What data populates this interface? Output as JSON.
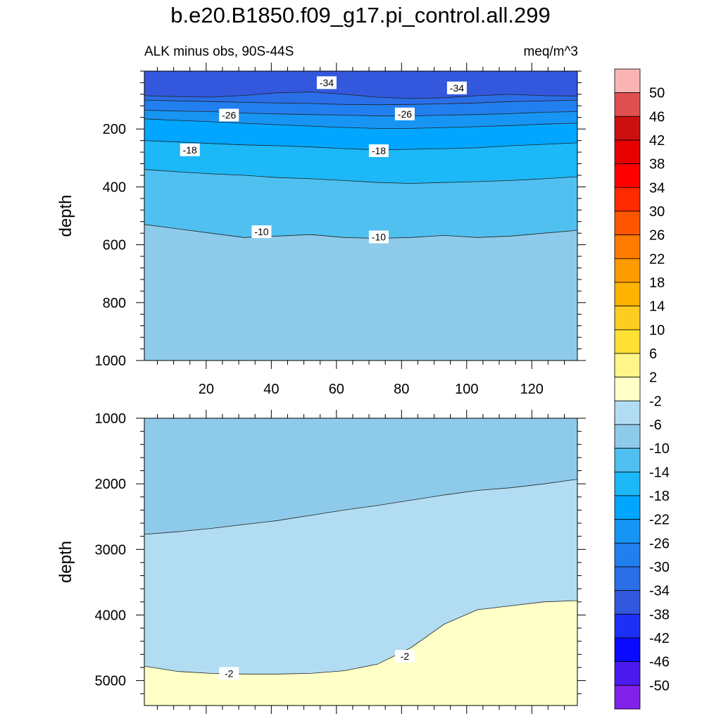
{
  "title": "b.e20.B1850.f09_g17.pi_control.all.299",
  "subtitle_left": "ALK minus obs, 90S-44S",
  "subtitle_right": "meq/m^3",
  "chart_data": [
    {
      "panel": "upper",
      "type": "contour",
      "ylabel": "depth",
      "xlabel": "",
      "xlim": [
        1,
        134
      ],
      "ylim": [
        1000,
        0
      ],
      "y_reversed": true,
      "xticks": [
        20,
        40,
        60,
        80,
        100,
        120
      ],
      "yticks": [
        200,
        400,
        600,
        800,
        1000
      ],
      "level_boundaries": [
        {
          "level": -34,
          "depth": [
            85,
            88,
            90,
            84,
            75,
            72,
            80,
            90,
            95,
            92,
            85,
            80,
            85,
            86
          ]
        },
        {
          "level": -30,
          "depth": [
            100,
            103,
            105,
            108,
            110,
            112,
            115,
            116,
            115,
            113,
            110,
            105,
            103,
            100
          ]
        },
        {
          "level": -26,
          "depth": [
            135,
            138,
            140,
            145,
            148,
            150,
            152,
            155,
            155,
            152,
            150,
            147,
            142,
            140
          ]
        },
        {
          "level": -22,
          "depth": [
            165,
            170,
            175,
            180,
            185,
            190,
            195,
            198,
            198,
            195,
            192,
            188,
            183,
            180
          ]
        },
        {
          "level": -18,
          "depth": [
            240,
            245,
            250,
            255,
            258,
            262,
            268,
            272,
            270,
            268,
            265,
            258,
            253,
            248
          ]
        },
        {
          "level": -14,
          "depth": [
            340,
            348,
            355,
            360,
            368,
            372,
            378,
            385,
            388,
            385,
            382,
            378,
            372,
            365
          ]
        },
        {
          "level": -10,
          "depth": [
            530,
            545,
            560,
            575,
            570,
            565,
            575,
            578,
            575,
            568,
            575,
            570,
            560,
            550
          ]
        }
      ],
      "contour_labels": [
        {
          "text": "-34",
          "x": 57,
          "y": 40
        },
        {
          "text": "-34",
          "x": 97,
          "y": 58
        },
        {
          "text": "-26",
          "x": 27,
          "y": 152
        },
        {
          "text": "-26",
          "x": 81,
          "y": 148
        },
        {
          "text": "-18",
          "x": 15,
          "y": 272
        },
        {
          "text": "-18",
          "x": 73,
          "y": 275
        },
        {
          "text": "-10",
          "x": 37,
          "y": 555
        },
        {
          "text": "-10",
          "x": 73,
          "y": 573
        }
      ]
    },
    {
      "panel": "lower",
      "type": "contour",
      "ylabel": "depth",
      "xlabel": "",
      "xlim": [
        1,
        134
      ],
      "ylim": [
        5380,
        1000
      ],
      "y_reversed": true,
      "yticks": [
        1000,
        2000,
        3000,
        4000,
        5000
      ],
      "level_boundaries": [
        {
          "level": -6,
          "depth": [
            2770,
            2730,
            2680,
            2620,
            2560,
            2480,
            2400,
            2330,
            2250,
            2170,
            2100,
            2060,
            2000,
            1930
          ]
        },
        {
          "level": -2,
          "depth": [
            4780,
            4860,
            4890,
            4900,
            4900,
            4890,
            4850,
            4750,
            4500,
            4140,
            3920,
            3860,
            3800,
            3780
          ]
        }
      ],
      "contour_labels": [
        {
          "text": "-2",
          "x": 27,
          "y": 4890
        },
        {
          "text": "-2",
          "x": 81,
          "y": 4630
        }
      ]
    }
  ],
  "colorbar": {
    "labels": [
      "50",
      "46",
      "42",
      "38",
      "34",
      "30",
      "26",
      "22",
      "18",
      "14",
      "10",
      "6",
      "2",
      "-2",
      "-6",
      "-10",
      "-14",
      "-18",
      "-22",
      "-26",
      "-30",
      "-34",
      "-38",
      "-42",
      "-46",
      "-50"
    ],
    "colors": [
      "#fbb4b4",
      "#e05050",
      "#cc1010",
      "#e60000",
      "#ff0000",
      "#ff2a00",
      "#ff5500",
      "#ff7b00",
      "#ff9a00",
      "#ffb300",
      "#ffcc22",
      "#ffe033",
      "#fff588",
      "#ffffc8",
      "#b2dcf2",
      "#8ecbeb",
      "#50c0f0",
      "#1cb8f8",
      "#00a6ff",
      "#1795f5",
      "#227ff0",
      "#2a6ee8",
      "#3358dd",
      "#1e30f5",
      "#0a0aff",
      "#4a1aee",
      "#8020e8"
    ]
  }
}
